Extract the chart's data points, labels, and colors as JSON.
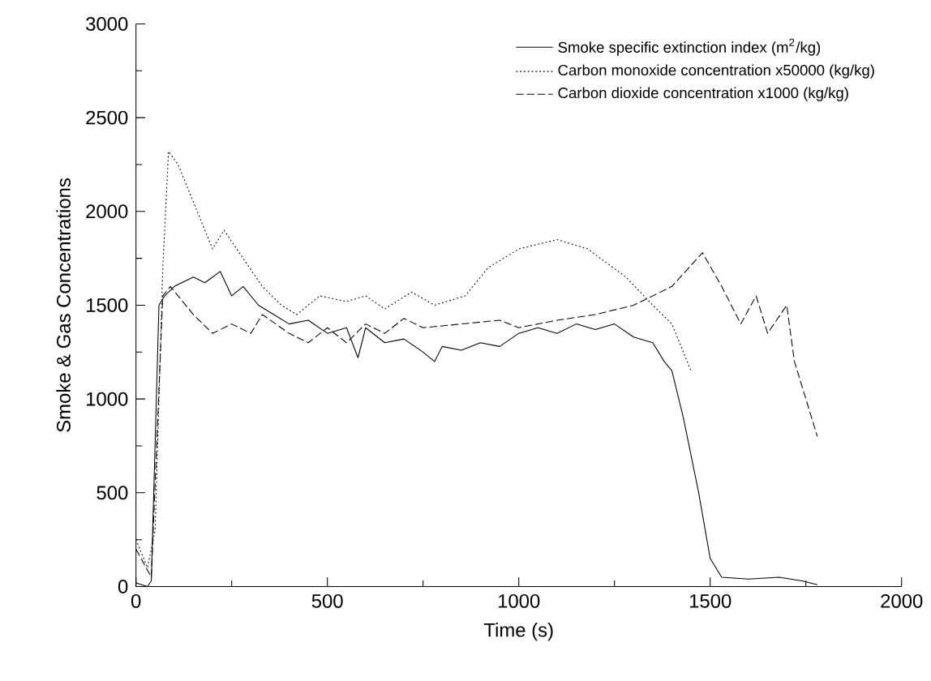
{
  "chart_data": {
    "type": "line",
    "xlabel": "Time (s)",
    "ylabel": "Smoke & Gas Concentrations",
    "xlim": [
      0,
      2000
    ],
    "ylim": [
      0,
      3000
    ],
    "xticks": [
      0,
      500,
      1000,
      1500,
      2000
    ],
    "yticks": [
      0,
      500,
      1000,
      1500,
      2000,
      2500,
      3000
    ],
    "grid": false,
    "legend": "top right",
    "marker": "none",
    "series": [
      {
        "name": "Smoke specific extinction index (m$^{2}$/kg)",
        "color": "#000000",
        "line_style": "solid",
        "x": [
          0,
          30,
          40,
          60,
          75,
          100,
          150,
          180,
          220,
          250,
          280,
          320,
          360,
          400,
          450,
          500,
          550,
          580,
          600,
          650,
          700,
          750,
          780,
          800,
          850,
          900,
          950,
          1000,
          1050,
          1100,
          1150,
          1200,
          1250,
          1300,
          1350,
          1380,
          1400,
          1430,
          1470,
          1500,
          1530,
          1600,
          1680,
          1740,
          1780
        ],
        "values": [
          20,
          0,
          30,
          1500,
          1550,
          1600,
          1650,
          1620,
          1680,
          1550,
          1600,
          1500,
          1450,
          1400,
          1420,
          1350,
          1380,
          1220,
          1380,
          1300,
          1320,
          1250,
          1200,
          1280,
          1260,
          1300,
          1280,
          1350,
          1380,
          1350,
          1400,
          1370,
          1400,
          1330,
          1300,
          1200,
          1150,
          900,
          500,
          150,
          50,
          40,
          50,
          30,
          10
        ]
      },
      {
        "name": "Carbon monoxide concentration x50000 (kg/kg)",
        "color": "#000000",
        "line_style": "dotted",
        "x": [
          0,
          30,
          50,
          70,
          85,
          110,
          150,
          200,
          230,
          280,
          330,
          380,
          420,
          480,
          550,
          600,
          650,
          720,
          780,
          860,
          920,
          1000,
          1100,
          1180,
          1280,
          1350,
          1400,
          1450
        ],
        "values": [
          250,
          100,
          300,
          1700,
          2320,
          2250,
          2050,
          1800,
          1900,
          1750,
          1600,
          1500,
          1450,
          1550,
          1520,
          1550,
          1480,
          1570,
          1500,
          1550,
          1700,
          1800,
          1850,
          1800,
          1650,
          1500,
          1400,
          1150
        ]
      },
      {
        "name": "Carbon dioxide concentration x1000 (kg/kg)",
        "color": "#000000",
        "line_style": "dashed",
        "x": [
          0,
          40,
          70,
          90,
          150,
          200,
          250,
          300,
          330,
          400,
          450,
          500,
          550,
          600,
          650,
          700,
          750,
          850,
          950,
          1000,
          1100,
          1200,
          1300,
          1400,
          1480,
          1530,
          1580,
          1620,
          1650,
          1700,
          1720,
          1780
        ],
        "values": [
          200,
          50,
          1550,
          1600,
          1450,
          1350,
          1400,
          1350,
          1450,
          1350,
          1300,
          1380,
          1300,
          1400,
          1350,
          1430,
          1380,
          1400,
          1420,
          1380,
          1420,
          1450,
          1500,
          1600,
          1780,
          1600,
          1400,
          1550,
          1350,
          1500,
          1200,
          800
        ]
      }
    ]
  }
}
